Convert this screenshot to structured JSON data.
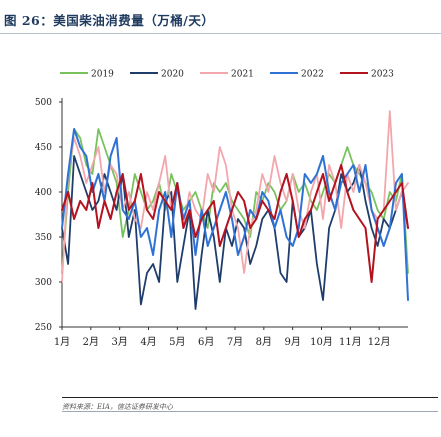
{
  "figure": {
    "title": "图 26：美国柴油消费量（万桶/天）",
    "source": "资料来源：EIA，信达证券研发中心"
  },
  "chart_data": {
    "type": "line",
    "ylim": [
      250,
      500
    ],
    "yticks": [
      250,
      300,
      350,
      400,
      450,
      500
    ],
    "xlim": [
      1,
      13
    ],
    "xticks": [
      {
        "label": "1月",
        "x": 1
      },
      {
        "label": "2月",
        "x": 2
      },
      {
        "label": "3月",
        "x": 3
      },
      {
        "label": "4月",
        "x": 4
      },
      {
        "label": "5月",
        "x": 5
      },
      {
        "label": "6月",
        "x": 6
      },
      {
        "label": "7月",
        "x": 7
      },
      {
        "label": "8月",
        "x": 8
      },
      {
        "label": "9月",
        "x": 9
      },
      {
        "label": "10月",
        "x": 10
      },
      {
        "label": "11月",
        "x": 11
      },
      {
        "label": "12月",
        "x": 12
      }
    ],
    "legend_position": "top",
    "grid": false,
    "series": [
      {
        "name": "2019",
        "color": "#77c25c",
        "width": 1.8,
        "values": [
          310,
          400,
          470,
          460,
          430,
          420,
          470,
          450,
          430,
          410,
          350,
          380,
          420,
          400,
          380,
          390,
          410,
          380,
          420,
          400,
          380,
          390,
          400,
          380,
          360,
          410,
          400,
          410,
          390,
          380,
          370,
          350,
          400,
          390,
          410,
          400,
          380,
          390,
          420,
          400,
          410,
          390,
          380,
          400,
          420,
          410,
          430,
          450,
          430,
          420,
          410,
          400,
          380,
          370,
          400,
          390,
          420,
          310
        ]
      },
      {
        "name": "2020",
        "color": "#1f3d6b",
        "width": 1.8,
        "values": [
          360,
          320,
          440,
          420,
          400,
          380,
          390,
          420,
          400,
          380,
          420,
          350,
          380,
          275,
          310,
          320,
          300,
          390,
          400,
          300,
          340,
          380,
          270,
          330,
          380,
          350,
          300,
          360,
          340,
          370,
          360,
          320,
          340,
          370,
          380,
          360,
          310,
          300,
          390,
          350,
          360,
          380,
          320,
          280,
          360,
          380,
          420,
          400,
          410,
          430,
          390,
          360,
          340,
          370,
          360,
          380,
          400,
          360
        ]
      },
      {
        "name": "2021",
        "color": "#f2a7ad",
        "width": 1.8,
        "values": [
          300,
          420,
          460,
          440,
          410,
          430,
          450,
          400,
          430,
          420,
          380,
          400,
          370,
          360,
          400,
          380,
          410,
          440,
          380,
          410,
          360,
          400,
          380,
          370,
          420,
          400,
          450,
          430,
          380,
          360,
          310,
          360,
          380,
          420,
          400,
          440,
          410,
          390,
          420,
          380,
          360,
          400,
          420,
          370,
          430,
          410,
          360,
          420,
          400,
          430,
          410,
          380,
          370,
          380,
          490,
          380,
          400,
          410
        ]
      },
      {
        "name": "2022",
        "color": "#2f72d6",
        "width": 2.0,
        "values": [
          360,
          420,
          470,
          450,
          440,
          400,
          420,
          390,
          440,
          460,
          380,
          370,
          390,
          350,
          360,
          330,
          380,
          400,
          350,
          410,
          370,
          390,
          330,
          380,
          340,
          360,
          380,
          400,
          370,
          330,
          350,
          380,
          370,
          400,
          390,
          360,
          380,
          350,
          340,
          360,
          420,
          410,
          420,
          440,
          400,
          380,
          410,
          420,
          430,
          400,
          430,
          380,
          360,
          340,
          360,
          410,
          420,
          280
        ]
      },
      {
        "name": "2023",
        "color": "#b3121f",
        "width": 2.0,
        "values": [
          380,
          400,
          370,
          390,
          380,
          410,
          360,
          390,
          370,
          400,
          420,
          380,
          390,
          420,
          380,
          370,
          400,
          390,
          380,
          410,
          360,
          380,
          350,
          370,
          380,
          390,
          340,
          360,
          380,
          400,
          390,
          360,
          370,
          390,
          380,
          370,
          400,
          420,
          390,
          350,
          370,
          380,
          400,
          420,
          390,
          410,
          430,
          400,
          380,
          370,
          360,
          300,
          370,
          380,
          390,
          400,
          410,
          360
        ]
      }
    ]
  }
}
